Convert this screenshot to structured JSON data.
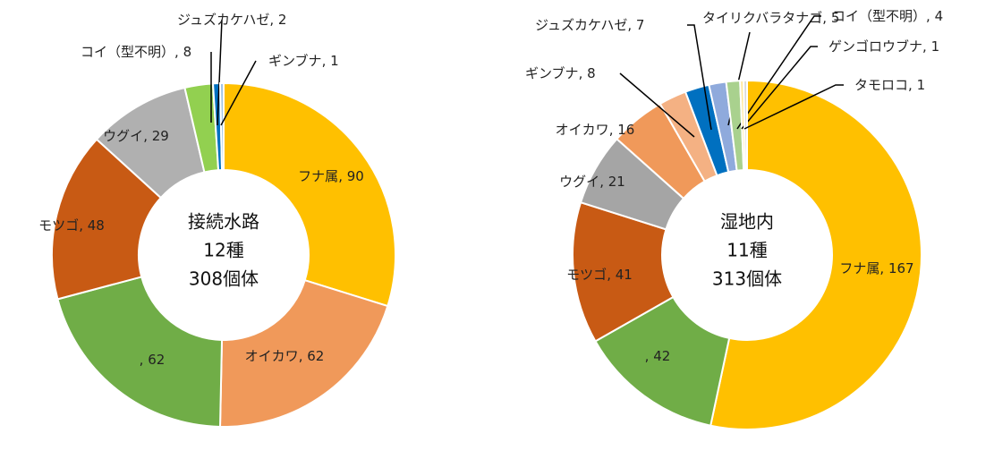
{
  "chart_data": [
    {
      "type": "donut",
      "title": "接続水路",
      "species_label": "12種",
      "count_label": "308個体",
      "label_separator": ", ",
      "categories": [
        "フナ属",
        "オイカワ",
        null,
        "モツゴ",
        "ウグイ",
        "コイ（型不明）",
        "ジュズカケハゼ",
        "ギンブナ"
      ],
      "values": [
        90,
        62,
        62,
        48,
        29,
        8,
        2,
        1
      ],
      "colors": [
        "#ffc000",
        "#f0995a",
        "#70ad47",
        "#c85a14",
        "#b0b0b0",
        "#92d050",
        "#0070c0",
        "#9dc3e6"
      ]
    },
    {
      "type": "donut",
      "title": "湿地内",
      "species_label": "11種",
      "count_label": "313個体",
      "label_separator": ", ",
      "categories": [
        "フナ属",
        null,
        "モツゴ",
        "ウグイ",
        "オイカワ",
        "ギンブナ",
        "ジュズカケハゼ",
        "タイリクバラタナゴ",
        "コイ（型不明）",
        "ゲンゴロウブナ",
        "タモロコ"
      ],
      "values": [
        167,
        42,
        41,
        21,
        16,
        8,
        7,
        5,
        4,
        1,
        1
      ],
      "colors": [
        "#ffc000",
        "#70ad47",
        "#c85a14",
        "#a5a5a5",
        "#f0995a",
        "#f4b183",
        "#0070c0",
        "#8faadc",
        "#a9d18e",
        "#ffe699",
        "#d9d9d9"
      ]
    }
  ]
}
